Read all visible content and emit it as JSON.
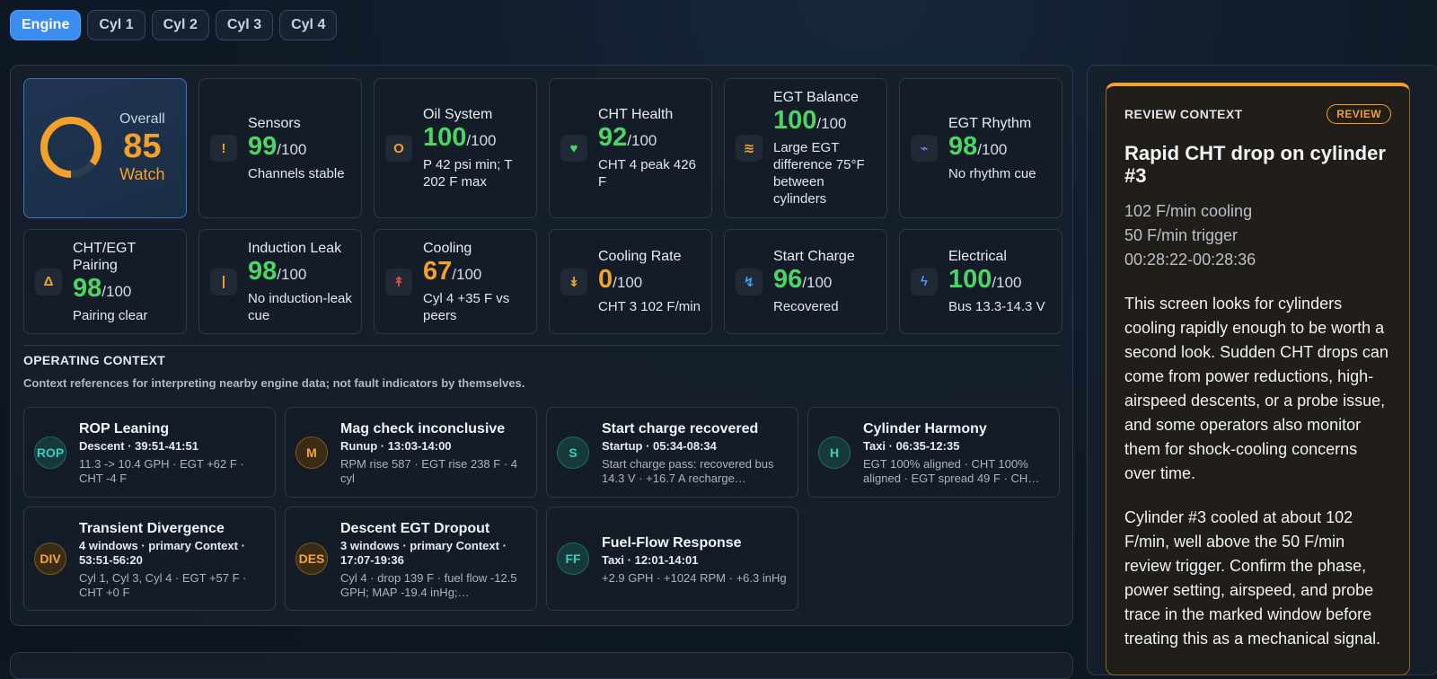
{
  "tabs": [
    {
      "label": "Engine",
      "active": true
    },
    {
      "label": "Cyl 1",
      "active": false
    },
    {
      "label": "Cyl 2",
      "active": false
    },
    {
      "label": "Cyl 3",
      "active": false
    },
    {
      "label": "Cyl 4",
      "active": false
    }
  ],
  "overall": {
    "label": "Overall",
    "value": "85",
    "status": "Watch",
    "fraction": 0.85,
    "color": "#f4a12a"
  },
  "metrics": [
    {
      "title": "Sensors",
      "value": "99",
      "denom": "/100",
      "desc": "Channels stable",
      "icon": "!",
      "icon_name": "exclamation-icon",
      "icon_color": "#f4a12a",
      "tone": "green"
    },
    {
      "title": "Oil System",
      "value": "100",
      "denom": "/100",
      "desc": "P 42 psi min; T 202 F max",
      "icon": "O",
      "icon_name": "oil-icon",
      "icon_color": "#f4a12a",
      "tone": "green"
    },
    {
      "title": "CHT Health",
      "value": "92",
      "denom": "/100",
      "desc": "CHT 4 peak 426 F",
      "icon": "♥",
      "icon_name": "heart-icon",
      "icon_color": "#4cd464",
      "tone": "green"
    },
    {
      "title": "EGT Balance",
      "value": "100",
      "denom": "/100",
      "desc": "Large EGT difference 75°F between cylinders",
      "icon": "≋",
      "icon_name": "waves-icon",
      "icon_color": "#f4a12a",
      "tone": "green"
    },
    {
      "title": "EGT Rhythm",
      "value": "98",
      "denom": "/100",
      "desc": "No rhythm cue",
      "icon": "⌁",
      "icon_name": "pulse-icon",
      "icon_color": "#b46cf0",
      "tone": "green"
    },
    {
      "title": "CHT/EGT Pairing",
      "value": "98",
      "denom": "/100",
      "desc": "Pairing clear",
      "icon": "Δ",
      "icon_name": "delta-icon",
      "icon_color": "#f4a12a",
      "tone": "green"
    },
    {
      "title": "Induction Leak",
      "value": "98",
      "denom": "/100",
      "desc": "No induction-leak cue",
      "icon": "|",
      "icon_name": "bar-icon",
      "icon_color": "#f4a12a",
      "tone": "green"
    },
    {
      "title": "Cooling",
      "value": "67",
      "denom": "/100",
      "desc": "Cyl 4 +35 F vs peers",
      "icon": "↟",
      "icon_name": "arrow-up-icon",
      "icon_color": "#e8503a",
      "tone": "orange"
    },
    {
      "title": "Cooling Rate",
      "value": "0",
      "denom": "/100",
      "desc": "CHT 3 102 F/min",
      "icon": "↡",
      "icon_name": "arrow-down-icon",
      "icon_color": "#f4a12a",
      "tone": "orange"
    },
    {
      "title": "Start Charge",
      "value": "96",
      "denom": "/100",
      "desc": "Recovered",
      "icon": "↯",
      "icon_name": "charge-icon",
      "icon_color": "#4a9bf5",
      "tone": "green"
    },
    {
      "title": "Electrical",
      "value": "100",
      "denom": "/100",
      "desc": "Bus 13.3-14.3 V",
      "icon": "ϟ",
      "icon_name": "lightning-icon",
      "icon_color": "#4a9bf5",
      "tone": "green"
    }
  ],
  "operating_context": {
    "title": "OPERATING CONTEXT",
    "subtitle": "Context references for interpreting nearby engine data; not fault indicators by themselves.",
    "items": [
      {
        "badge": "ROP",
        "tone": "teal",
        "title": "ROP Leaning",
        "sub": "Descent · 39:51-41:51",
        "desc": "11.3 -> 10.4 GPH · EGT +62 F · CHT -4 F"
      },
      {
        "badge": "M",
        "tone": "amber",
        "title": "Mag check inconclusive",
        "sub": "Runup · 13:03-14:00",
        "desc": "RPM rise 587 · EGT rise 238 F · 4 cyl"
      },
      {
        "badge": "S",
        "tone": "teal",
        "title": "Start charge recovered",
        "sub": "Startup · 05:34-08:34",
        "desc": "Start charge pass: recovered bus 14.3 V · +16.7 A recharge…"
      },
      {
        "badge": "H",
        "tone": "teal",
        "title": "Cylinder Harmony",
        "sub": "Taxi · 06:35-12:35",
        "desc": "EGT 100% aligned · CHT 100% aligned · EGT spread 49 F · CH…"
      },
      {
        "badge": "DIV",
        "tone": "amber",
        "title": "Transient Divergence",
        "sub": "4 windows · primary Context · 53:51-56:20",
        "desc": "Cyl 1, Cyl 3, Cyl 4 · EGT +57 F · CHT +0 F"
      },
      {
        "badge": "DES",
        "tone": "amber",
        "title": "Descent EGT Dropout",
        "sub": "3 windows · primary Context · 17:07-19:36",
        "desc": "Cyl 4 · drop 139 F · fuel flow -12.5 GPH; MAP -19.4 inHg;…"
      },
      {
        "badge": "FF",
        "tone": "teal",
        "title": "Fuel-Flow Response",
        "sub": "Taxi · 12:01-14:01",
        "desc": "+2.9 GPH · +1024 RPM · +6.3 inHg"
      }
    ]
  },
  "review": {
    "label": "REVIEW CONTEXT",
    "tag": "REVIEW",
    "title": "Rapid CHT drop on cylinder #3",
    "meta": [
      "102 F/min cooling",
      "50 F/min trigger",
      "00:28:22-00:28:36"
    ],
    "paragraphs": [
      "This screen looks for cylinders cooling rapidly enough to be worth a second look. Sudden CHT drops can come from power reductions, high-airspeed descents, or a probe issue, and some operators also monitor them for shock-cooling concerns over time.",
      "Cylinder #3 cooled at about 102 F/min, well above the 50 F/min review trigger. Confirm the phase, power setting, airspeed, and probe trace in the marked window before treating this as a mechanical signal."
    ]
  }
}
